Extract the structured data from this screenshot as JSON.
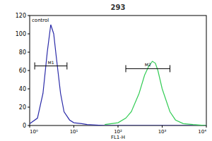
{
  "chart_data": {
    "type": "line",
    "title": "293",
    "x_label": "FL1-H",
    "log": "x",
    "xlim": [
      1,
      10000
    ],
    "xticks": [
      {
        "value": 1,
        "label": "10⁰"
      },
      {
        "value": 10,
        "label": "10¹"
      },
      {
        "value": 100,
        "label": "10²"
      },
      {
        "value": 1000,
        "label": "10³"
      },
      {
        "value": 10000,
        "label": "10⁴"
      }
    ],
    "ylim": [
      0,
      120
    ],
    "yticks": [
      0,
      20,
      40,
      60,
      80,
      100,
      120
    ],
    "series": [
      {
        "name": "control",
        "color": "#2a2aa8",
        "x": [
          1,
          1.5,
          2,
          2.5,
          3,
          3.5,
          4,
          5,
          6,
          8,
          10,
          15,
          20,
          50,
          100,
          1000,
          10000
        ],
        "values": [
          2,
          8,
          35,
          80,
          110,
          100,
          75,
          35,
          15,
          6,
          3,
          2,
          1,
          0,
          0,
          0,
          0
        ]
      },
      {
        "color": "#33cc55",
        "x": [
          50,
          100,
          150,
          200,
          300,
          400,
          500,
          600,
          700,
          800,
          1000,
          1500,
          2000,
          3000,
          5000,
          10000
        ],
        "values": [
          1,
          3,
          8,
          15,
          35,
          55,
          65,
          70,
          68,
          60,
          40,
          15,
          6,
          2,
          1,
          0
        ]
      }
    ],
    "gates": [
      {
        "label": "M1",
        "x": [
          1.3,
          7
        ],
        "y": 65
      },
      {
        "label": "M2",
        "x": [
          150,
          1500
        ],
        "y": 62
      }
    ]
  }
}
